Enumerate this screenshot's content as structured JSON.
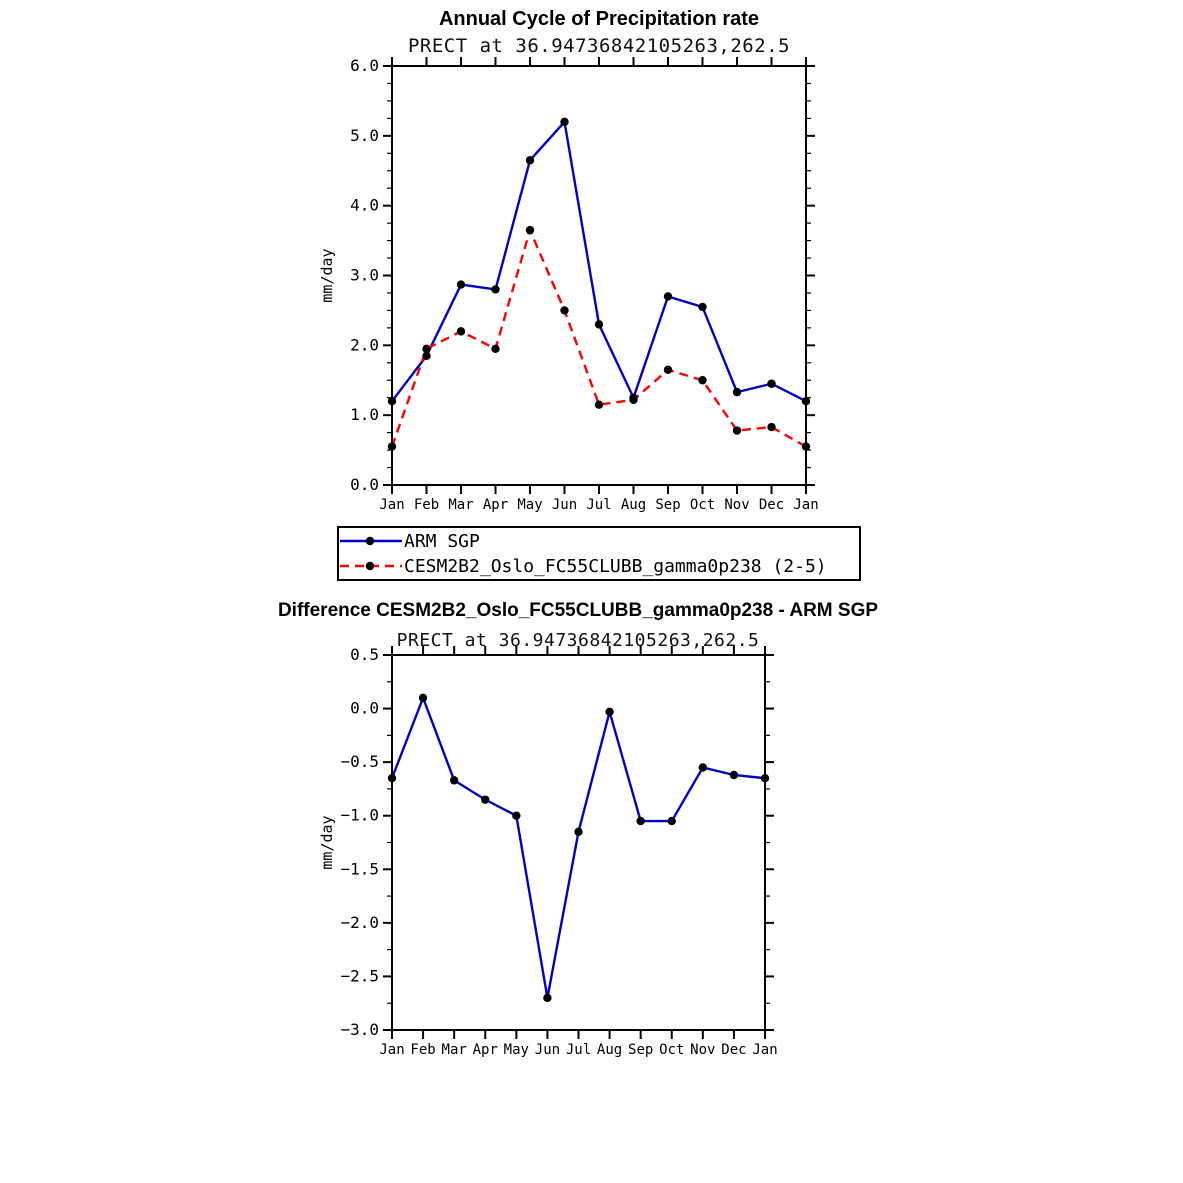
{
  "page": {
    "background": "#ffffff"
  },
  "chart_data": [
    {
      "type": "line",
      "title": "Annual Cycle of Precipitation rate",
      "subtitle": "PRECT at 36.94736842105263,262.5",
      "xlabel": "",
      "ylabel": "mm/day",
      "categories": [
        "Jan",
        "Feb",
        "Mar",
        "Apr",
        "May",
        "Jun",
        "Jul",
        "Aug",
        "Sep",
        "Oct",
        "Nov",
        "Dec",
        "Jan"
      ],
      "ylim": [
        0.0,
        6.0
      ],
      "ytick_step": 1.0,
      "ytick_minor": 0.25,
      "grid": false,
      "legend_position": "below",
      "series": [
        {
          "name": "ARM SGP",
          "color": "#0000cd",
          "style": "solid",
          "marker": "circle",
          "values": [
            1.2,
            1.85,
            2.87,
            2.8,
            4.65,
            5.2,
            2.3,
            1.25,
            2.7,
            2.55,
            1.33,
            1.45,
            1.2
          ]
        },
        {
          "name": "CESM2B2_Oslo_FC55CLUBB_gamma0p238 (2-5)",
          "color": "#ff0000",
          "style": "dashed",
          "marker": "circle",
          "values": [
            0.55,
            1.95,
            2.2,
            1.95,
            3.65,
            2.5,
            1.15,
            1.22,
            1.65,
            1.5,
            0.78,
            0.83,
            0.55
          ]
        }
      ]
    },
    {
      "type": "line",
      "title": "Difference CESM2B2_Oslo_FC55CLUBB_gamma0p238 - ARM SGP",
      "subtitle": "PRECT at 36.94736842105263,262.5",
      "xlabel": "",
      "ylabel": "mm/day",
      "categories": [
        "Jan",
        "Feb",
        "Mar",
        "Apr",
        "May",
        "Jun",
        "Jul",
        "Aug",
        "Sep",
        "Oct",
        "Nov",
        "Dec",
        "Jan"
      ],
      "ylim": [
        -3.0,
        0.5
      ],
      "ytick_step": 0.5,
      "ytick_minor": 0.25,
      "grid": false,
      "legend_position": "none",
      "series": [
        {
          "name": "CESM2B2_Oslo_FC55CLUBB_gamma0p238 - ARM SGP",
          "color": "#0000cd",
          "style": "solid",
          "marker": "circle",
          "values": [
            -0.65,
            0.1,
            -0.67,
            -0.85,
            -1.0,
            -2.7,
            -1.15,
            -0.03,
            -1.05,
            -1.05,
            -0.55,
            -0.62,
            -0.65
          ]
        }
      ]
    }
  ]
}
